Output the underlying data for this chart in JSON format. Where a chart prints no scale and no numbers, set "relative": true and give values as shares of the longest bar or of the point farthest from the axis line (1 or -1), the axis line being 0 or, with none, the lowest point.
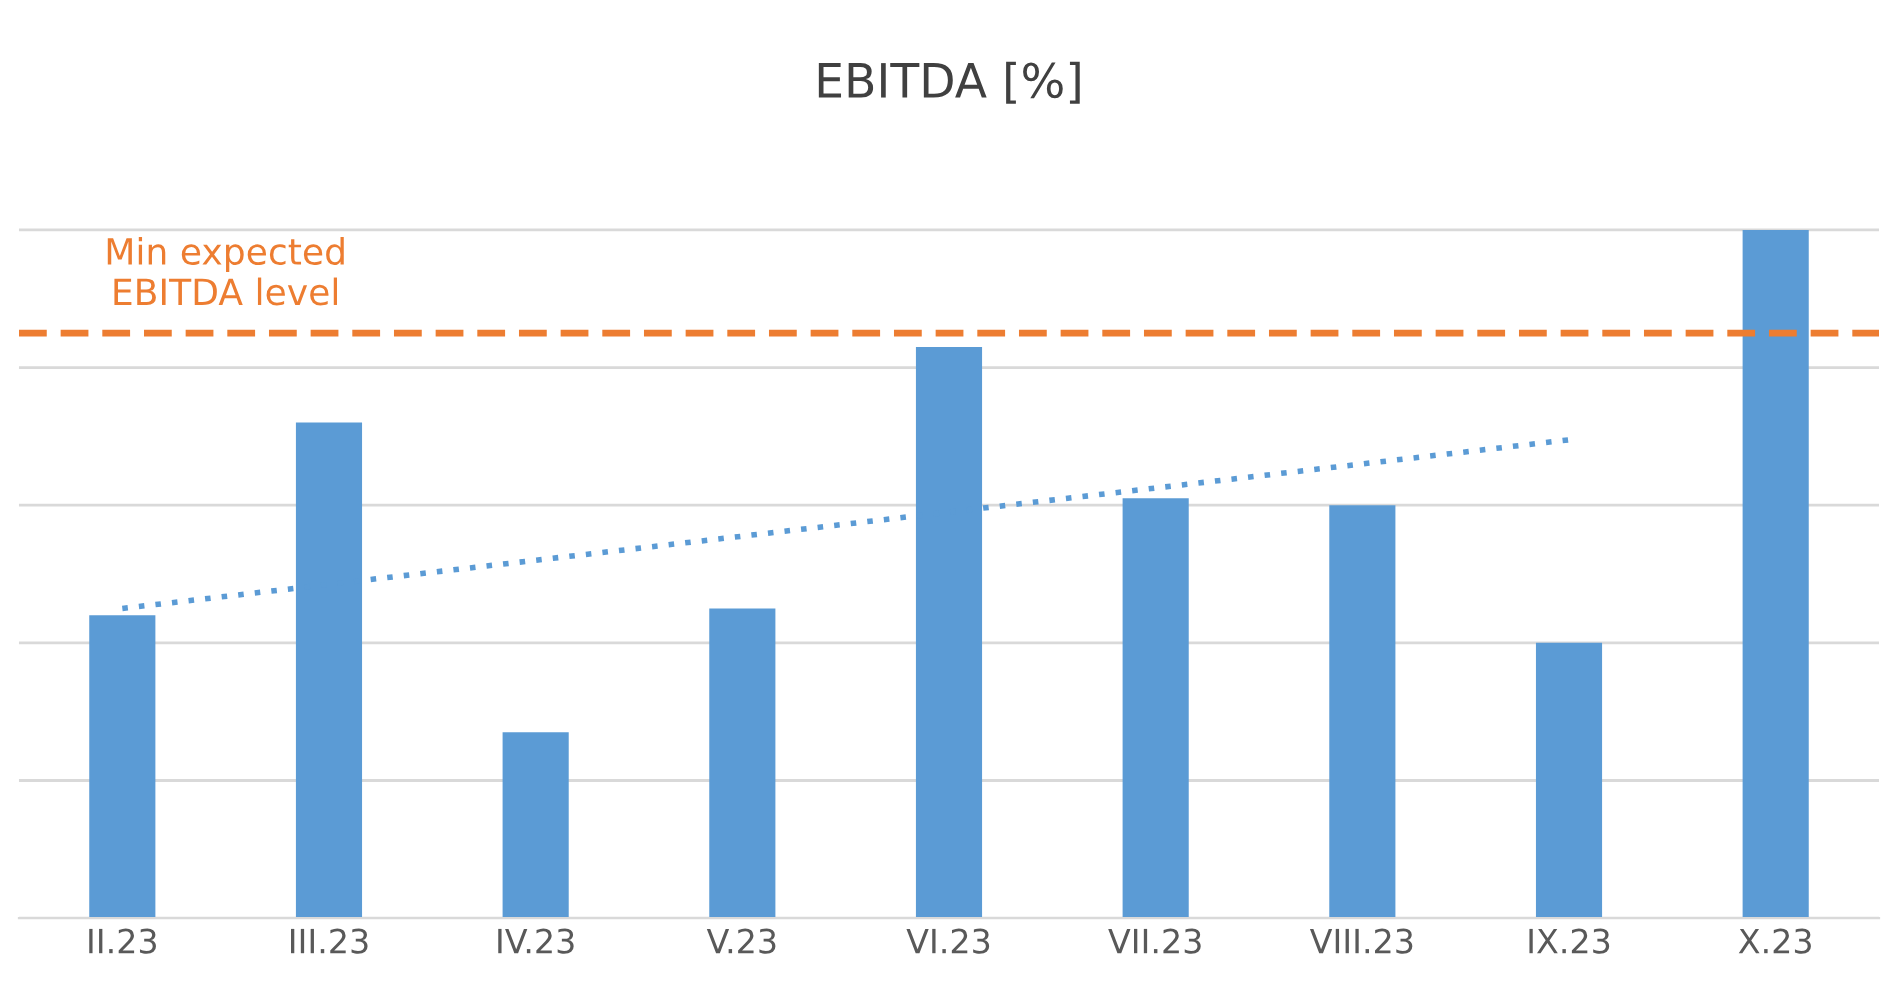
{
  "chart_data": {
    "type": "bar",
    "title": "EBITDA [%]",
    "categories": [
      "II.23",
      "III.23",
      "IV.23",
      "V.23",
      "VI.23",
      "VII.23",
      "VIII.23",
      "IX.23",
      "X.23"
    ],
    "series": [
      {
        "color": "#5b9bd5",
        "values": [
          0.44,
          0.72,
          0.27,
          0.45,
          0.83,
          0.61,
          0.6,
          0.4,
          1.0
        ]
      },
      {
        "type": "line",
        "color": "#5b9bd5",
        "line_style": "dotted",
        "values": [
          0.45,
          0.485,
          0.52,
          0.555,
          0.59,
          0.625,
          0.66,
          0.695,
          null
        ]
      }
    ],
    "relative": true,
    "ref_lines": [
      {
        "axis": "y",
        "value": 0.85,
        "label": "Min expected\nEBITDA level",
        "color": "#ed7d31",
        "line_style": "dashed"
      }
    ],
    "grid": "y",
    "legend": false
  }
}
